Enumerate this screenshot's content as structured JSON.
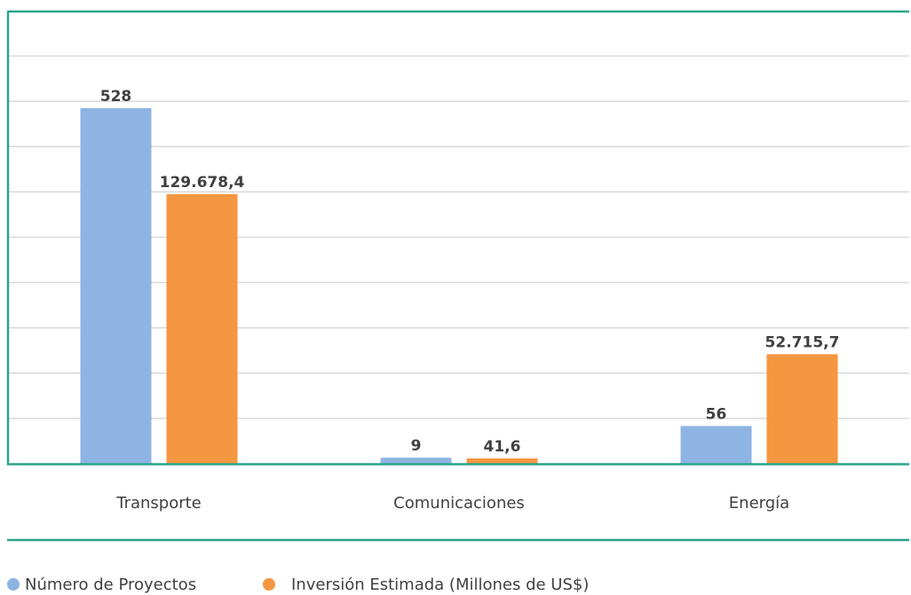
{
  "chart_data": {
    "type": "bar",
    "categories": [
      "Transporte",
      "Comunicaciones",
      "Energía"
    ],
    "series": [
      {
        "name": "Número de Proyectos",
        "color": "#8EB4E3",
        "values": [
          528,
          9,
          56
        ],
        "value_labels": [
          "528",
          "9",
          "56"
        ]
      },
      {
        "name": "Inversión Estimada (Millones de US$)",
        "color": "#F59640",
        "values": [
          129678.4,
          41.6,
          52715.7
        ],
        "value_labels": [
          "129.678,4",
          "41,6",
          "52.715,7"
        ]
      }
    ],
    "grid": true,
    "legend_position": "bottom-left",
    "frame_color": "#2AA58C",
    "grid_color": "#D9D9D9"
  }
}
